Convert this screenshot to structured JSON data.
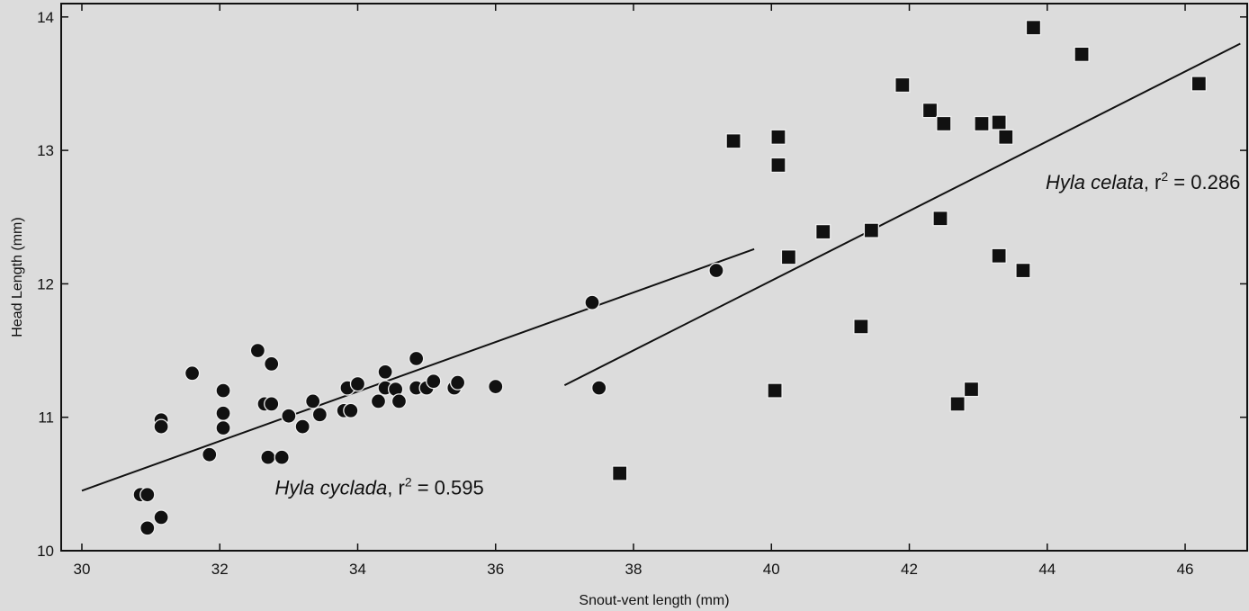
{
  "chart_data": {
    "type": "scatter",
    "title": "",
    "xlabel": "Snout-vent length (mm)",
    "ylabel": "Head Length (mm)",
    "xlim": [
      29.7,
      46.9
    ],
    "ylim": [
      10,
      14.1
    ],
    "xticks": [
      30,
      32,
      34,
      36,
      38,
      40,
      42,
      44,
      46
    ],
    "yticks": [
      10,
      11,
      12,
      13,
      14
    ],
    "grid": false,
    "series": [
      {
        "marker": "circle",
        "color": "#111111",
        "points": [
          [
            30.85,
            10.42
          ],
          [
            30.95,
            10.42
          ],
          [
            30.95,
            10.17
          ],
          [
            31.15,
            10.25
          ],
          [
            31.15,
            10.98
          ],
          [
            31.15,
            10.93
          ],
          [
            31.6,
            11.33
          ],
          [
            31.85,
            10.72
          ],
          [
            32.05,
            11.2
          ],
          [
            32.05,
            11.03
          ],
          [
            32.05,
            10.92
          ],
          [
            32.55,
            11.5
          ],
          [
            32.65,
            11.1
          ],
          [
            32.75,
            11.1
          ],
          [
            32.75,
            11.4
          ],
          [
            32.7,
            10.7
          ],
          [
            32.9,
            10.7
          ],
          [
            33.0,
            11.01
          ],
          [
            33.2,
            10.93
          ],
          [
            33.35,
            11.12
          ],
          [
            33.45,
            11.02
          ],
          [
            33.8,
            11.05
          ],
          [
            33.9,
            11.05
          ],
          [
            33.85,
            11.22
          ],
          [
            34.0,
            11.25
          ],
          [
            34.3,
            11.12
          ],
          [
            34.4,
            11.22
          ],
          [
            34.4,
            11.34
          ],
          [
            34.55,
            11.21
          ],
          [
            34.6,
            11.12
          ],
          [
            34.85,
            11.22
          ],
          [
            34.85,
            11.44
          ],
          [
            35.0,
            11.22
          ],
          [
            35.1,
            11.27
          ],
          [
            35.4,
            11.22
          ],
          [
            35.45,
            11.26
          ],
          [
            36.0,
            11.23
          ],
          [
            37.4,
            11.86
          ],
          [
            37.5,
            11.22
          ],
          [
            39.2,
            12.1
          ]
        ],
        "fit_line": [
          [
            30.0,
            10.45
          ],
          [
            39.75,
            12.26
          ]
        ]
      },
      {
        "marker": "square",
        "color": "#111111",
        "points": [
          [
            37.8,
            10.58
          ],
          [
            39.45,
            13.07
          ],
          [
            40.05,
            11.2
          ],
          [
            40.1,
            13.1
          ],
          [
            40.1,
            12.89
          ],
          [
            40.25,
            12.2
          ],
          [
            40.75,
            12.39
          ],
          [
            41.3,
            11.68
          ],
          [
            41.45,
            12.4
          ],
          [
            41.9,
            13.49
          ],
          [
            42.3,
            13.3
          ],
          [
            42.45,
            12.49
          ],
          [
            42.5,
            13.2
          ],
          [
            42.7,
            11.1
          ],
          [
            42.9,
            11.21
          ],
          [
            43.05,
            13.2
          ],
          [
            43.3,
            13.21
          ],
          [
            43.3,
            12.21
          ],
          [
            43.4,
            13.1
          ],
          [
            43.65,
            12.1
          ],
          [
            43.8,
            13.92
          ],
          [
            44.5,
            13.72
          ],
          [
            46.2,
            13.5
          ]
        ],
        "fit_line": [
          [
            37.0,
            11.24
          ],
          [
            46.8,
            13.8
          ]
        ]
      }
    ],
    "annotations": [
      {
        "species": "Hyla cyclada",
        "r2_label": ", r",
        "sup": "2",
        "value": " = 0.595",
        "x": 32.8,
        "y": 10.42,
        "anchor": "start"
      },
      {
        "species": "Hyla celata",
        "r2_label": ", r",
        "sup": "2",
        "value": " = 0.286",
        "x": 46.8,
        "y": 12.71,
        "anchor": "end"
      }
    ]
  }
}
